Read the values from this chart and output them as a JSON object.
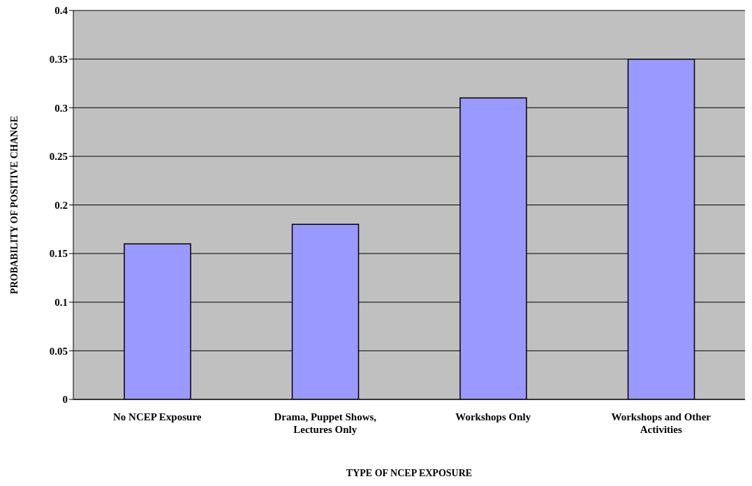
{
  "chart_data": {
    "type": "bar",
    "xlabel": "TYPE OF NCEP EXPOSURE",
    "ylabel": "PROBABILITY OF POSITIVE CHANGE",
    "categories": [
      "No NCEP Exposure",
      "Drama, Puppet Shows, Lectures Only",
      "Workshops Only",
      "Workshops and Other Activities"
    ],
    "values": [
      0.16,
      0.18,
      0.31,
      0.35
    ],
    "color": "#9999ff",
    "ylim": [
      0,
      0.4
    ],
    "yticks": [
      0,
      0.05,
      0.1,
      0.15,
      0.2,
      0.25,
      0.3,
      0.35,
      0.4
    ],
    "grid": "y",
    "legend": false
  }
}
